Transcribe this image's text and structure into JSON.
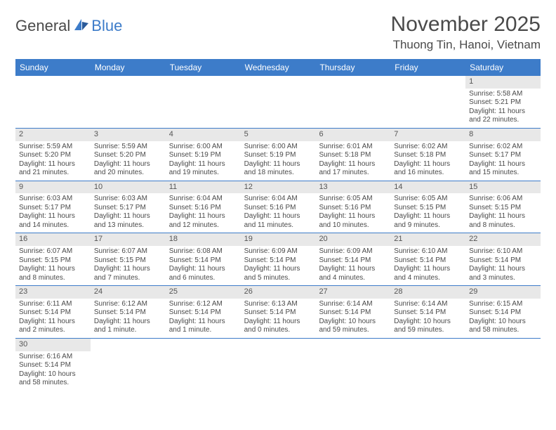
{
  "logo": {
    "part1": "General",
    "part2": "Blue"
  },
  "title": "November 2025",
  "location": "Thuong Tin, Hanoi, Vietnam",
  "colors": {
    "header_bg": "#3d7cc9",
    "header_text": "#ffffff",
    "daynum_bg": "#e8e8e8",
    "text": "#4a4a4a",
    "row_border": "#3d7cc9",
    "page_bg": "#ffffff"
  },
  "fonts": {
    "title_size_pt": 22,
    "location_size_pt": 13,
    "dayheader_size_pt": 9,
    "daynum_size_pt": 8,
    "body_size_pt": 7.5
  },
  "day_headers": [
    "Sunday",
    "Monday",
    "Tuesday",
    "Wednesday",
    "Thursday",
    "Friday",
    "Saturday"
  ],
  "weeks": [
    [
      null,
      null,
      null,
      null,
      null,
      null,
      {
        "n": "1",
        "sr": "Sunrise: 5:58 AM",
        "ss": "Sunset: 5:21 PM",
        "dl": "Daylight: 11 hours and 22 minutes."
      }
    ],
    [
      {
        "n": "2",
        "sr": "Sunrise: 5:59 AM",
        "ss": "Sunset: 5:20 PM",
        "dl": "Daylight: 11 hours and 21 minutes."
      },
      {
        "n": "3",
        "sr": "Sunrise: 5:59 AM",
        "ss": "Sunset: 5:20 PM",
        "dl": "Daylight: 11 hours and 20 minutes."
      },
      {
        "n": "4",
        "sr": "Sunrise: 6:00 AM",
        "ss": "Sunset: 5:19 PM",
        "dl": "Daylight: 11 hours and 19 minutes."
      },
      {
        "n": "5",
        "sr": "Sunrise: 6:00 AM",
        "ss": "Sunset: 5:19 PM",
        "dl": "Daylight: 11 hours and 18 minutes."
      },
      {
        "n": "6",
        "sr": "Sunrise: 6:01 AM",
        "ss": "Sunset: 5:18 PM",
        "dl": "Daylight: 11 hours and 17 minutes."
      },
      {
        "n": "7",
        "sr": "Sunrise: 6:02 AM",
        "ss": "Sunset: 5:18 PM",
        "dl": "Daylight: 11 hours and 16 minutes."
      },
      {
        "n": "8",
        "sr": "Sunrise: 6:02 AM",
        "ss": "Sunset: 5:17 PM",
        "dl": "Daylight: 11 hours and 15 minutes."
      }
    ],
    [
      {
        "n": "9",
        "sr": "Sunrise: 6:03 AM",
        "ss": "Sunset: 5:17 PM",
        "dl": "Daylight: 11 hours and 14 minutes."
      },
      {
        "n": "10",
        "sr": "Sunrise: 6:03 AM",
        "ss": "Sunset: 5:17 PM",
        "dl": "Daylight: 11 hours and 13 minutes."
      },
      {
        "n": "11",
        "sr": "Sunrise: 6:04 AM",
        "ss": "Sunset: 5:16 PM",
        "dl": "Daylight: 11 hours and 12 minutes."
      },
      {
        "n": "12",
        "sr": "Sunrise: 6:04 AM",
        "ss": "Sunset: 5:16 PM",
        "dl": "Daylight: 11 hours and 11 minutes."
      },
      {
        "n": "13",
        "sr": "Sunrise: 6:05 AM",
        "ss": "Sunset: 5:16 PM",
        "dl": "Daylight: 11 hours and 10 minutes."
      },
      {
        "n": "14",
        "sr": "Sunrise: 6:05 AM",
        "ss": "Sunset: 5:15 PM",
        "dl": "Daylight: 11 hours and 9 minutes."
      },
      {
        "n": "15",
        "sr": "Sunrise: 6:06 AM",
        "ss": "Sunset: 5:15 PM",
        "dl": "Daylight: 11 hours and 8 minutes."
      }
    ],
    [
      {
        "n": "16",
        "sr": "Sunrise: 6:07 AM",
        "ss": "Sunset: 5:15 PM",
        "dl": "Daylight: 11 hours and 8 minutes."
      },
      {
        "n": "17",
        "sr": "Sunrise: 6:07 AM",
        "ss": "Sunset: 5:15 PM",
        "dl": "Daylight: 11 hours and 7 minutes."
      },
      {
        "n": "18",
        "sr": "Sunrise: 6:08 AM",
        "ss": "Sunset: 5:14 PM",
        "dl": "Daylight: 11 hours and 6 minutes."
      },
      {
        "n": "19",
        "sr": "Sunrise: 6:09 AM",
        "ss": "Sunset: 5:14 PM",
        "dl": "Daylight: 11 hours and 5 minutes."
      },
      {
        "n": "20",
        "sr": "Sunrise: 6:09 AM",
        "ss": "Sunset: 5:14 PM",
        "dl": "Daylight: 11 hours and 4 minutes."
      },
      {
        "n": "21",
        "sr": "Sunrise: 6:10 AM",
        "ss": "Sunset: 5:14 PM",
        "dl": "Daylight: 11 hours and 4 minutes."
      },
      {
        "n": "22",
        "sr": "Sunrise: 6:10 AM",
        "ss": "Sunset: 5:14 PM",
        "dl": "Daylight: 11 hours and 3 minutes."
      }
    ],
    [
      {
        "n": "23",
        "sr": "Sunrise: 6:11 AM",
        "ss": "Sunset: 5:14 PM",
        "dl": "Daylight: 11 hours and 2 minutes."
      },
      {
        "n": "24",
        "sr": "Sunrise: 6:12 AM",
        "ss": "Sunset: 5:14 PM",
        "dl": "Daylight: 11 hours and 1 minute."
      },
      {
        "n": "25",
        "sr": "Sunrise: 6:12 AM",
        "ss": "Sunset: 5:14 PM",
        "dl": "Daylight: 11 hours and 1 minute."
      },
      {
        "n": "26",
        "sr": "Sunrise: 6:13 AM",
        "ss": "Sunset: 5:14 PM",
        "dl": "Daylight: 11 hours and 0 minutes."
      },
      {
        "n": "27",
        "sr": "Sunrise: 6:14 AM",
        "ss": "Sunset: 5:14 PM",
        "dl": "Daylight: 10 hours and 59 minutes."
      },
      {
        "n": "28",
        "sr": "Sunrise: 6:14 AM",
        "ss": "Sunset: 5:14 PM",
        "dl": "Daylight: 10 hours and 59 minutes."
      },
      {
        "n": "29",
        "sr": "Sunrise: 6:15 AM",
        "ss": "Sunset: 5:14 PM",
        "dl": "Daylight: 10 hours and 58 minutes."
      }
    ],
    [
      {
        "n": "30",
        "sr": "Sunrise: 6:16 AM",
        "ss": "Sunset: 5:14 PM",
        "dl": "Daylight: 10 hours and 58 minutes."
      },
      null,
      null,
      null,
      null,
      null,
      null
    ]
  ]
}
